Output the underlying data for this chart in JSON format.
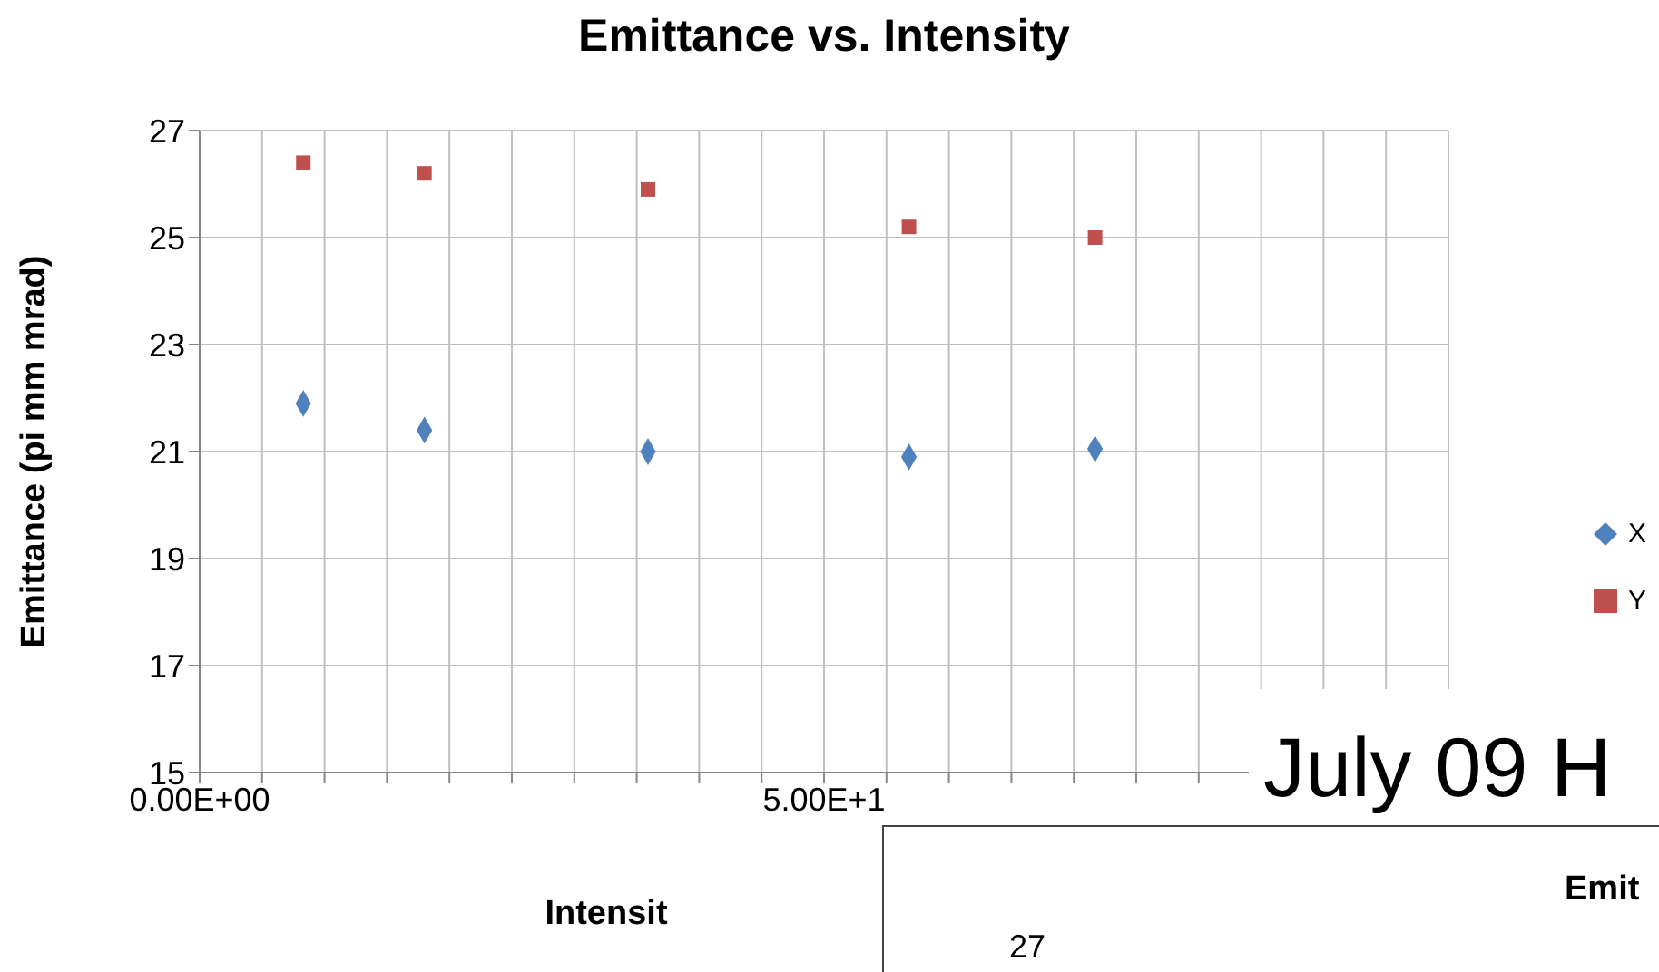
{
  "chart_data": {
    "type": "scatter",
    "title": "Emittance vs. Intensity",
    "xlabel": "Intensit",
    "ylabel": "Emittance (pi mm mrad)",
    "series": [
      {
        "name": "X",
        "color": "#4f81bd",
        "marker": "diamond",
        "x": [
          8.3,
          18,
          35.9,
          56.8,
          71.7
        ],
        "values": [
          21.9,
          21.4,
          21.0,
          20.9,
          21.05
        ]
      },
      {
        "name": "Y",
        "color": "#c0504d",
        "marker": "square",
        "x": [
          8.3,
          18,
          35.9,
          56.8,
          71.7
        ],
        "values": [
          26.4,
          26.2,
          25.9,
          25.2,
          25.0
        ]
      }
    ],
    "xlim": [
      0,
      100
    ],
    "xticks": [
      {
        "value": 0,
        "label": "0.00E+00"
      },
      {
        "value": 5,
        "label": null
      },
      {
        "value": 10,
        "label": null
      },
      {
        "value": 15,
        "label": null
      },
      {
        "value": 20,
        "label": null
      },
      {
        "value": 25,
        "label": null
      },
      {
        "value": 30,
        "label": null
      },
      {
        "value": 35,
        "label": null
      },
      {
        "value": 40,
        "label": null
      },
      {
        "value": 45,
        "label": null
      },
      {
        "value": 50,
        "label": "5.00E+1"
      },
      {
        "value": 55,
        "label": null
      },
      {
        "value": 60,
        "label": null
      },
      {
        "value": 65,
        "label": null
      },
      {
        "value": 70,
        "label": null
      },
      {
        "value": 75,
        "label": null
      },
      {
        "value": 80,
        "label": null
      },
      {
        "value": 85,
        "label": null
      },
      {
        "value": 90,
        "label": null
      },
      {
        "value": 95,
        "label": null
      },
      {
        "value": 100,
        "label": null
      }
    ],
    "ylim": [
      15,
      27
    ],
    "yticks": [
      15,
      17,
      19,
      21,
      23,
      25,
      27
    ],
    "grid": true,
    "legend": "right",
    "annotations": [
      "July 09 H",
      "Emit",
      "27"
    ]
  }
}
